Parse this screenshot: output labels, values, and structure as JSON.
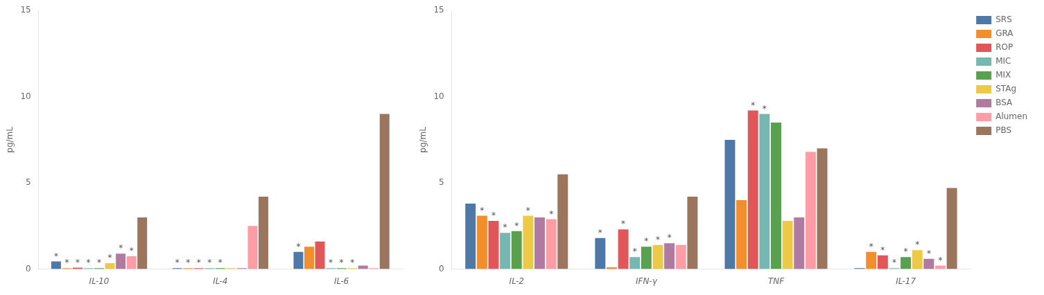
{
  "chart_data": [
    {
      "type": "bar",
      "categories": [
        "IL-10",
        "IL-4",
        "IL-6"
      ],
      "ylabel": "pg/mL",
      "ylim": [
        0,
        15
      ],
      "yticks": [
        0,
        5,
        10,
        15
      ],
      "grid": false,
      "series": [
        {
          "name": "SRS",
          "color": "#4e79a7",
          "values": [
            0.45,
            0.05,
            1.0
          ],
          "annotations": [
            "*",
            "*",
            "*"
          ]
        },
        {
          "name": "GRA",
          "color": "#f28e2b",
          "values": [
            0.05,
            0.05,
            1.3
          ],
          "annotations": [
            "*",
            "*",
            null
          ]
        },
        {
          "name": "ROP",
          "color": "#e15759",
          "values": [
            0.08,
            0.05,
            1.6
          ],
          "annotations": [
            "*",
            "*",
            null
          ]
        },
        {
          "name": "MIC",
          "color": "#76b7b2",
          "values": [
            0.05,
            0.05,
            0.05
          ],
          "annotations": [
            "*",
            "*",
            "*"
          ]
        },
        {
          "name": "MIX",
          "color": "#59a14f",
          "values": [
            0.05,
            0.05,
            0.05
          ],
          "annotations": [
            "*",
            "*",
            "*"
          ]
        },
        {
          "name": "STAg",
          "color": "#edc948",
          "values": [
            0.35,
            0.05,
            0.05
          ],
          "annotations": [
            "*",
            null,
            "*"
          ]
        },
        {
          "name": "BSA",
          "color": "#b07aa1",
          "values": [
            0.9,
            0.05,
            0.2
          ],
          "annotations": [
            "*",
            null,
            null
          ]
        },
        {
          "name": "Alumen",
          "color": "#ff9da7",
          "values": [
            0.75,
            2.5,
            0.05
          ],
          "annotations": [
            "*",
            null,
            null
          ]
        },
        {
          "name": "PBS",
          "color": "#9c755f",
          "values": [
            3.0,
            4.2,
            9.0
          ],
          "annotations": [
            null,
            null,
            null
          ]
        }
      ]
    },
    {
      "type": "bar",
      "categories": [
        "IL-2",
        "IFN-γ",
        "TNF",
        "IL-17"
      ],
      "ylabel": "pg/mL",
      "ylim": [
        0,
        15
      ],
      "yticks": [
        0,
        5,
        10,
        15
      ],
      "grid": false,
      "legend": "right",
      "series": [
        {
          "name": "SRS",
          "color": "#4e79a7",
          "values": [
            3.8,
            1.8,
            7.5,
            0.05
          ],
          "annotations": [
            null,
            "*",
            null,
            null
          ]
        },
        {
          "name": "GRA",
          "color": "#f28e2b",
          "values": [
            3.1,
            0.1,
            4.0,
            1.0
          ],
          "annotations": [
            "*",
            null,
            null,
            "*"
          ]
        },
        {
          "name": "ROP",
          "color": "#e15759",
          "values": [
            2.8,
            2.3,
            9.2,
            0.8
          ],
          "annotations": [
            "*",
            "*",
            "*",
            "*"
          ]
        },
        {
          "name": "MIC",
          "color": "#76b7b2",
          "values": [
            2.1,
            0.7,
            9.0,
            0.05
          ],
          "annotations": [
            "*",
            "*",
            "*",
            "*"
          ]
        },
        {
          "name": "MIX",
          "color": "#59a14f",
          "values": [
            2.2,
            1.3,
            8.5,
            0.7
          ],
          "annotations": [
            "*",
            "*",
            null,
            "*"
          ]
        },
        {
          "name": "STAg",
          "color": "#edc948",
          "values": [
            3.1,
            1.4,
            2.8,
            1.1
          ],
          "annotations": [
            "*",
            "*",
            null,
            "*"
          ]
        },
        {
          "name": "BSA",
          "color": "#b07aa1",
          "values": [
            3.0,
            1.5,
            3.0,
            0.6
          ],
          "annotations": [
            null,
            "*",
            null,
            "*"
          ]
        },
        {
          "name": "Alumen",
          "color": "#ff9da7",
          "values": [
            2.9,
            1.4,
            6.8,
            0.2
          ],
          "annotations": [
            "*",
            null,
            null,
            "*"
          ]
        },
        {
          "name": "PBS",
          "color": "#9c755f",
          "values": [
            5.5,
            4.2,
            7.0,
            4.7
          ],
          "annotations": [
            null,
            null,
            null,
            null
          ]
        }
      ]
    }
  ]
}
